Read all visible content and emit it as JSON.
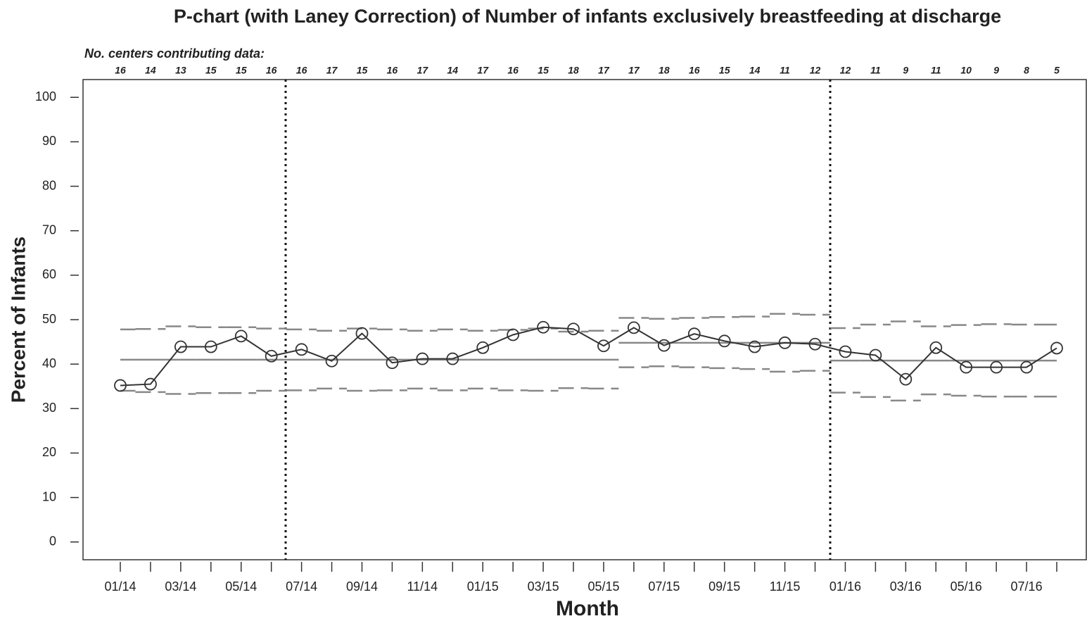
{
  "chart_data": {
    "type": "p-chart",
    "title": "P-chart (with Laney Correction) of Number of infants exclusively breastfeeding at discharge",
    "counts_label": "No. centers contributing data:",
    "x_label": "Month",
    "y_label": "Percent of Infants",
    "categories": [
      "01/14",
      null,
      "03/14",
      null,
      "05/14",
      null,
      "07/14",
      null,
      "09/14",
      null,
      "11/14",
      null,
      "01/15",
      null,
      "03/15",
      null,
      "05/15",
      null,
      "07/15",
      null,
      "09/15",
      null,
      "11/15",
      null,
      "01/16",
      null,
      "03/16",
      null,
      "05/16",
      null,
      "07/16",
      null
    ],
    "counts": [
      16,
      14,
      13,
      15,
      15,
      16,
      16,
      17,
      15,
      16,
      17,
      14,
      17,
      16,
      15,
      18,
      17,
      17,
      18,
      16,
      15,
      14,
      11,
      12,
      12,
      11,
      9,
      11,
      10,
      9,
      8,
      5
    ],
    "values": [
      35.2,
      35.5,
      43.9,
      43.9,
      46.3,
      41.8,
      43.3,
      40.7,
      46.9,
      40.3,
      41.2,
      41.2,
      43.7,
      46.6,
      48.3,
      47.9,
      44.1,
      48.2,
      44.2,
      46.8,
      45.2,
      43.9,
      44.8,
      44.5,
      42.8,
      42.0,
      36.6,
      43.7,
      39.3,
      39.3,
      39.3,
      43.6
    ],
    "center": [
      41.0,
      41.0,
      41.0,
      41.0,
      41.0,
      41.0,
      41.0,
      41.0,
      41.0,
      41.0,
      41.0,
      41.0,
      41.0,
      41.0,
      41.0,
      41.0,
      41.0,
      44.8,
      44.8,
      44.8,
      44.8,
      44.8,
      44.8,
      44.8,
      40.8,
      40.8,
      40.8,
      40.8,
      40.8,
      40.8,
      40.8,
      40.8
    ],
    "ucl": [
      47.8,
      47.9,
      48.5,
      48.3,
      48.3,
      48.0,
      47.8,
      47.5,
      48.0,
      47.8,
      47.5,
      47.8,
      47.5,
      47.7,
      48.0,
      47.3,
      47.5,
      50.4,
      50.2,
      50.4,
      50.6,
      50.7,
      51.3,
      51.1,
      48.1,
      48.9,
      49.6,
      48.5,
      48.8,
      49.0,
      48.9,
      48.9
    ],
    "lcl": [
      34.0,
      33.7,
      33.3,
      33.5,
      33.5,
      34.0,
      34.1,
      34.5,
      34.0,
      34.1,
      34.5,
      34.1,
      34.5,
      34.1,
      34.0,
      34.6,
      34.5,
      39.3,
      39.5,
      39.3,
      39.1,
      38.9,
      38.3,
      38.5,
      33.6,
      32.6,
      31.8,
      33.2,
      32.9,
      32.7,
      32.7,
      32.7
    ],
    "line_color": "#333333",
    "limit_color": "#888888",
    "ylim": [
      -4,
      104
    ],
    "yticks": [
      0,
      10,
      20,
      30,
      40,
      50,
      60,
      70,
      80,
      90,
      100
    ]
  }
}
